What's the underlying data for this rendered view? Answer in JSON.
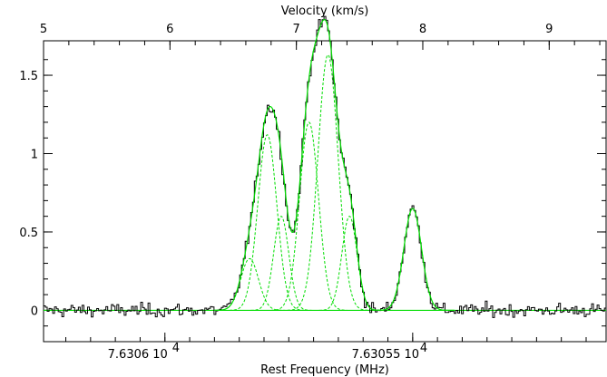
{
  "chart_data": {
    "type": "line",
    "top_axis": {
      "label": "Velocity (km/s)",
      "range": [
        5,
        9.45
      ],
      "ticks": [
        5,
        6,
        7,
        8,
        9
      ],
      "tick_labels": [
        "5",
        "6",
        "7",
        "8",
        "9"
      ]
    },
    "bottom_axis": {
      "label": "Rest Frequency (MHz)",
      "tick_labels": [
        {
          "mantissa": "7.6306",
          "exponent": "4",
          "at_velocity": 5.96
        },
        {
          "mantissa": "7.63055",
          "exponent": "4",
          "at_velocity": 7.92
        }
      ]
    },
    "y_axis": {
      "range": [
        -0.2,
        1.72
      ],
      "ticks": [
        0,
        0.5,
        1,
        1.5
      ],
      "tick_labels": [
        "0",
        "0.5",
        "1",
        "1.5"
      ]
    },
    "series": [
      {
        "kind": "observed spectrum (histogram)",
        "color": "#000000",
        "noise_rms": 0.03
      },
      {
        "kind": "gaussian fit components",
        "color": "#00dd00",
        "style": "dashed",
        "components": [
          {
            "center": 6.63,
            "amplitude": 0.33,
            "sigma": 0.07
          },
          {
            "center": 6.77,
            "amplitude": 1.12,
            "sigma": 0.075
          },
          {
            "center": 6.88,
            "amplitude": 0.6,
            "sigma": 0.06
          },
          {
            "center": 7.1,
            "amplitude": 1.2,
            "sigma": 0.075
          },
          {
            "center": 7.25,
            "amplitude": 1.63,
            "sigma": 0.08
          },
          {
            "center": 7.42,
            "amplitude": 0.6,
            "sigma": 0.06
          },
          {
            "center": 7.92,
            "amplitude": 0.65,
            "sigma": 0.07
          }
        ]
      },
      {
        "kind": "total fit",
        "color": "#00dd00",
        "style": "solid"
      },
      {
        "kind": "baseline",
        "color": "#00dd00",
        "value": 0
      }
    ]
  }
}
